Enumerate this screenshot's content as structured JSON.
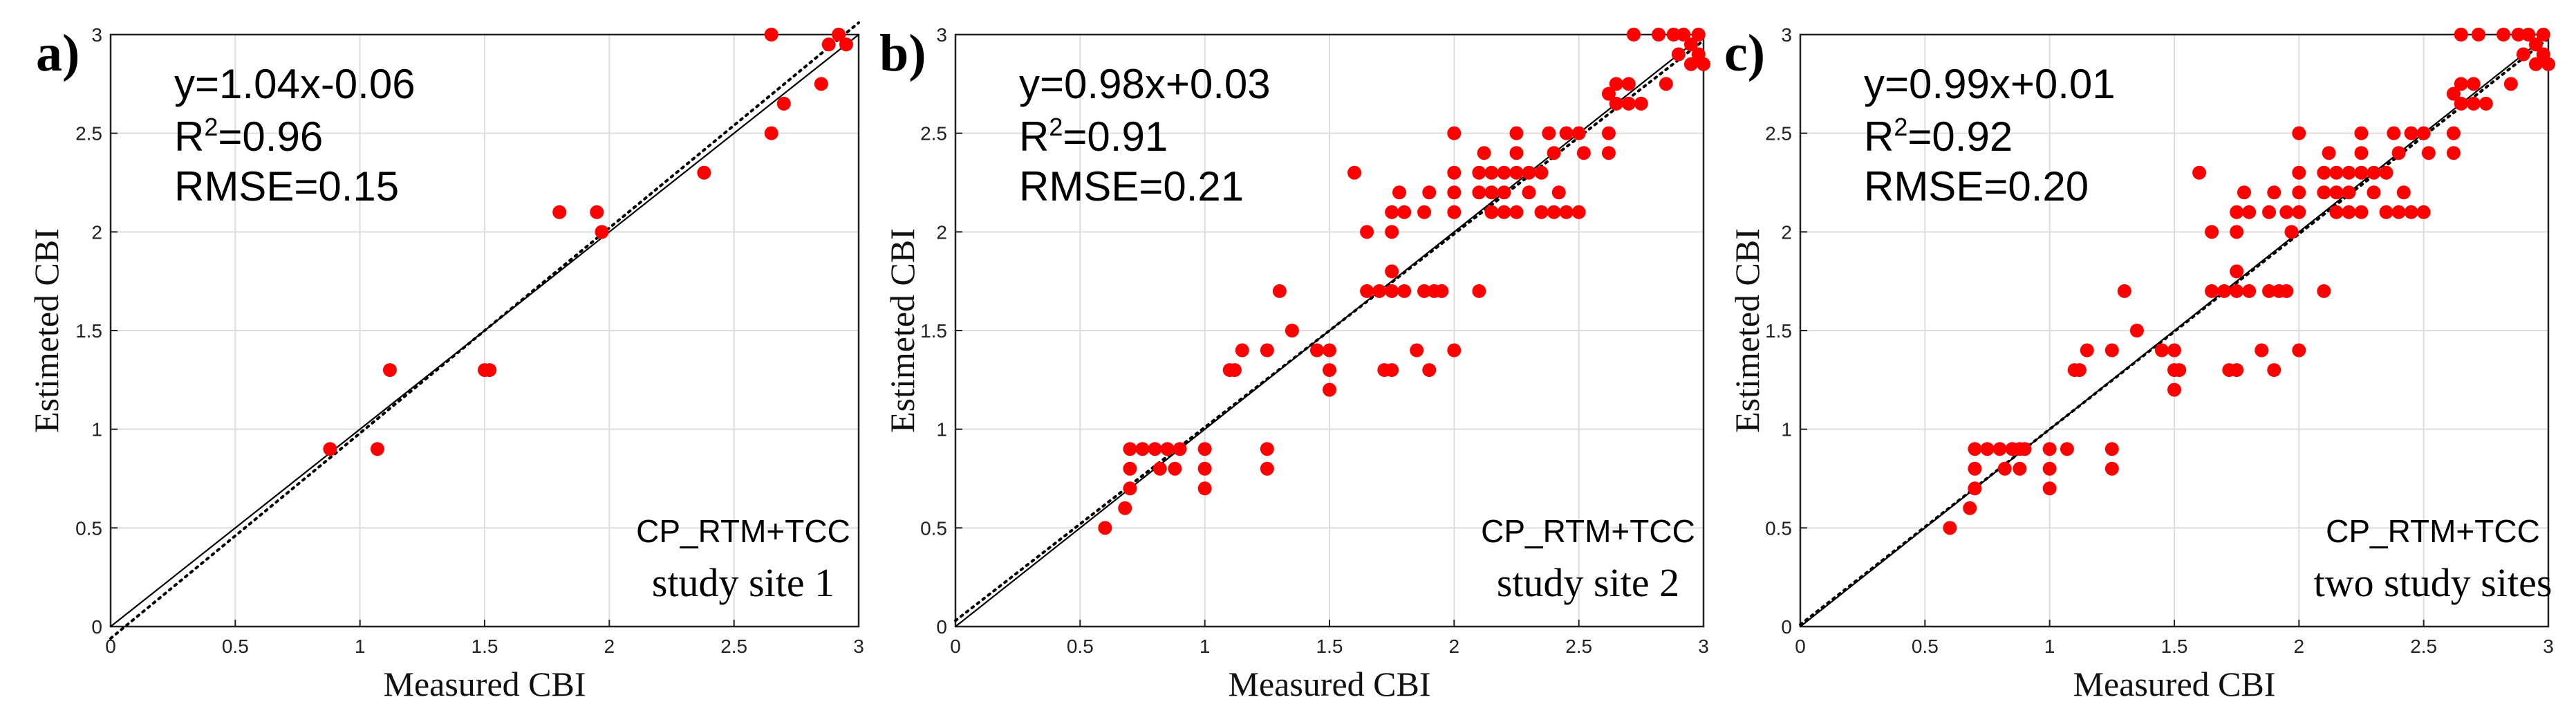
{
  "chart_data": [
    {
      "type": "scatter",
      "panel_label": "a)",
      "xlabel": "Measured CBI",
      "ylabel": "Estimeted CBI",
      "xlim": [
        0,
        3
      ],
      "ylim": [
        0,
        3
      ],
      "xticks": [
        "0",
        "0.5",
        "1",
        "1.5",
        "2",
        "2.5",
        "3"
      ],
      "yticks": [
        "0",
        "0.5",
        "1",
        "1.5",
        "2",
        "2.5",
        "3"
      ],
      "grid": true,
      "equation": "y=1.04x-0.06",
      "r2_label": "R",
      "r2_value": "=0.96",
      "rmse": "RMSE=0.15",
      "model": "CP_RTM+TCC",
      "site": "study site 1",
      "fit_line": {
        "slope": 1.04,
        "intercept": -0.06,
        "style": "dotted"
      },
      "one_to_one_line": {
        "style": "solid"
      },
      "points": [
        [
          0.88,
          0.9
        ],
        [
          1.07,
          0.9
        ],
        [
          1.12,
          1.3
        ],
        [
          1.5,
          1.3
        ],
        [
          1.52,
          1.3
        ],
        [
          1.8,
          2.1
        ],
        [
          1.95,
          2.1
        ],
        [
          1.97,
          2.0
        ],
        [
          2.38,
          2.3
        ],
        [
          2.65,
          3.0
        ],
        [
          2.65,
          2.5
        ],
        [
          2.7,
          2.65
        ],
        [
          2.85,
          2.75
        ],
        [
          2.88,
          2.95
        ],
        [
          2.92,
          3.0
        ],
        [
          2.95,
          2.95
        ]
      ]
    },
    {
      "type": "scatter",
      "panel_label": "b)",
      "xlabel": "Measured CBI",
      "ylabel": "Estimeted CBI",
      "xlim": [
        0,
        3
      ],
      "ylim": [
        0,
        3
      ],
      "xticks": [
        "0",
        "0.5",
        "1",
        "1.5",
        "2",
        "2.5",
        "3"
      ],
      "yticks": [
        "0",
        "0.5",
        "1",
        "1.5",
        "2",
        "2.5",
        "3"
      ],
      "grid": true,
      "equation": "y=0.98x+0.03",
      "r2_label": "R",
      "r2_value": "=0.91",
      "rmse": "RMSE=0.21",
      "model": "CP_RTM+TCC",
      "site": "study site 2",
      "fit_line": {
        "slope": 0.98,
        "intercept": 0.03,
        "style": "dotted"
      },
      "one_to_one_line": {
        "style": "solid"
      },
      "points": [
        [
          0.6,
          0.5
        ],
        [
          0.68,
          0.6
        ],
        [
          0.7,
          0.7
        ],
        [
          0.7,
          0.8
        ],
        [
          0.7,
          0.9
        ],
        [
          0.75,
          0.9
        ],
        [
          0.8,
          0.9
        ],
        [
          0.82,
          0.8
        ],
        [
          0.85,
          0.9
        ],
        [
          0.88,
          0.8
        ],
        [
          0.9,
          0.9
        ],
        [
          1.0,
          0.9
        ],
        [
          1.0,
          0.8
        ],
        [
          1.0,
          0.7
        ],
        [
          1.1,
          1.3
        ],
        [
          1.12,
          1.3
        ],
        [
          1.15,
          1.4
        ],
        [
          1.25,
          1.4
        ],
        [
          1.25,
          0.9
        ],
        [
          1.25,
          0.8
        ],
        [
          1.3,
          1.7
        ],
        [
          1.35,
          1.5
        ],
        [
          1.45,
          1.4
        ],
        [
          1.5,
          1.4
        ],
        [
          1.5,
          1.3
        ],
        [
          1.5,
          1.2
        ],
        [
          1.6,
          2.3
        ],
        [
          1.65,
          1.7
        ],
        [
          1.65,
          2.0
        ],
        [
          1.7,
          1.7
        ],
        [
          1.72,
          1.3
        ],
        [
          1.75,
          1.3
        ],
        [
          1.75,
          1.7
        ],
        [
          1.75,
          1.8
        ],
        [
          1.75,
          2.0
        ],
        [
          1.75,
          2.1
        ],
        [
          1.78,
          2.2
        ],
        [
          1.8,
          1.7
        ],
        [
          1.8,
          2.1
        ],
        [
          1.85,
          1.4
        ],
        [
          1.88,
          2.1
        ],
        [
          1.88,
          1.7
        ],
        [
          1.9,
          2.2
        ],
        [
          1.9,
          1.3
        ],
        [
          1.92,
          1.7
        ],
        [
          1.95,
          1.7
        ],
        [
          2.0,
          2.5
        ],
        [
          2.0,
          2.3
        ],
        [
          2.0,
          2.2
        ],
        [
          2.0,
          2.1
        ],
        [
          2.0,
          1.4
        ],
        [
          2.1,
          2.2
        ],
        [
          2.1,
          2.3
        ],
        [
          2.1,
          1.7
        ],
        [
          2.12,
          2.4
        ],
        [
          2.15,
          2.1
        ],
        [
          2.15,
          2.2
        ],
        [
          2.15,
          2.3
        ],
        [
          2.2,
          2.1
        ],
        [
          2.2,
          2.2
        ],
        [
          2.2,
          2.3
        ],
        [
          2.25,
          2.5
        ],
        [
          2.25,
          2.4
        ],
        [
          2.25,
          2.3
        ],
        [
          2.25,
          2.1
        ],
        [
          2.3,
          2.3
        ],
        [
          2.3,
          2.2
        ],
        [
          2.35,
          2.1
        ],
        [
          2.35,
          2.3
        ],
        [
          2.38,
          2.5
        ],
        [
          2.4,
          2.4
        ],
        [
          2.4,
          2.1
        ],
        [
          2.42,
          2.2
        ],
        [
          2.45,
          2.5
        ],
        [
          2.45,
          2.1
        ],
        [
          2.5,
          2.5
        ],
        [
          2.5,
          2.1
        ],
        [
          2.52,
          2.4
        ],
        [
          2.62,
          2.4
        ],
        [
          2.62,
          2.5
        ],
        [
          2.62,
          2.7
        ],
        [
          2.65,
          2.75
        ],
        [
          2.65,
          2.65
        ],
        [
          2.7,
          2.75
        ],
        [
          2.7,
          2.65
        ],
        [
          2.72,
          3.0
        ],
        [
          2.75,
          2.65
        ],
        [
          2.82,
          3.0
        ],
        [
          2.85,
          2.75
        ],
        [
          2.88,
          3.0
        ],
        [
          2.9,
          2.9
        ],
        [
          2.92,
          3.0
        ],
        [
          2.95,
          2.95
        ],
        [
          2.95,
          2.85
        ],
        [
          2.98,
          3.0
        ],
        [
          2.98,
          2.9
        ],
        [
          3.0,
          2.85
        ]
      ]
    },
    {
      "type": "scatter",
      "panel_label": "c)",
      "xlabel": "Measured CBI",
      "ylabel": "Estimeted CBI",
      "xlim": [
        0,
        3
      ],
      "ylim": [
        0,
        3
      ],
      "xticks": [
        "0",
        "0.5",
        "1",
        "1.5",
        "2",
        "2.5",
        "3"
      ],
      "yticks": [
        "0",
        "0.5",
        "1",
        "1.5",
        "2",
        "2.5",
        "3"
      ],
      "grid": true,
      "equation": "y=0.99x+0.01",
      "r2_label": "R",
      "r2_value": "=0.92",
      "rmse": "RMSE=0.20",
      "model": "CP_RTM+TCC",
      "site": "two study sites",
      "fit_line": {
        "slope": 0.99,
        "intercept": 0.01,
        "style": "dotted"
      },
      "one_to_one_line": {
        "style": "solid"
      },
      "points": [
        [
          0.6,
          0.5
        ],
        [
          0.68,
          0.6
        ],
        [
          0.7,
          0.7
        ],
        [
          0.7,
          0.8
        ],
        [
          0.7,
          0.9
        ],
        [
          0.75,
          0.9
        ],
        [
          0.8,
          0.9
        ],
        [
          0.82,
          0.8
        ],
        [
          0.85,
          0.9
        ],
        [
          0.88,
          0.8
        ],
        [
          0.88,
          0.9
        ],
        [
          0.9,
          0.9
        ],
        [
          1.0,
          0.9
        ],
        [
          1.0,
          0.8
        ],
        [
          1.0,
          0.7
        ],
        [
          1.07,
          0.9
        ],
        [
          1.1,
          1.3
        ],
        [
          1.12,
          1.3
        ],
        [
          1.15,
          1.4
        ],
        [
          1.25,
          1.4
        ],
        [
          1.25,
          0.9
        ],
        [
          1.25,
          0.8
        ],
        [
          1.3,
          1.7
        ],
        [
          1.35,
          1.5
        ],
        [
          1.45,
          1.4
        ],
        [
          1.5,
          1.4
        ],
        [
          1.5,
          1.3
        ],
        [
          1.52,
          1.3
        ],
        [
          1.5,
          1.2
        ],
        [
          1.6,
          2.3
        ],
        [
          1.65,
          1.7
        ],
        [
          1.65,
          2.0
        ],
        [
          1.7,
          1.7
        ],
        [
          1.72,
          1.3
        ],
        [
          1.75,
          1.3
        ],
        [
          1.75,
          1.7
        ],
        [
          1.75,
          1.8
        ],
        [
          1.75,
          2.0
        ],
        [
          1.75,
          2.1
        ],
        [
          1.78,
          2.2
        ],
        [
          1.8,
          1.7
        ],
        [
          1.8,
          2.1
        ],
        [
          1.85,
          1.4
        ],
        [
          1.88,
          2.1
        ],
        [
          1.88,
          1.7
        ],
        [
          1.9,
          2.2
        ],
        [
          1.9,
          1.3
        ],
        [
          1.92,
          1.7
        ],
        [
          1.95,
          1.7
        ],
        [
          1.95,
          2.1
        ],
        [
          1.97,
          2.0
        ],
        [
          2.0,
          2.5
        ],
        [
          2.0,
          2.3
        ],
        [
          2.0,
          2.2
        ],
        [
          2.0,
          2.1
        ],
        [
          2.0,
          1.4
        ],
        [
          2.1,
          2.2
        ],
        [
          2.1,
          2.3
        ],
        [
          2.1,
          1.7
        ],
        [
          2.12,
          2.4
        ],
        [
          2.15,
          2.1
        ],
        [
          2.15,
          2.2
        ],
        [
          2.15,
          2.3
        ],
        [
          2.2,
          2.1
        ],
        [
          2.2,
          2.2
        ],
        [
          2.2,
          2.3
        ],
        [
          2.25,
          2.5
        ],
        [
          2.25,
          2.4
        ],
        [
          2.25,
          2.3
        ],
        [
          2.25,
          2.1
        ],
        [
          2.3,
          2.3
        ],
        [
          2.3,
          2.2
        ],
        [
          2.35,
          2.1
        ],
        [
          2.35,
          2.3
        ],
        [
          2.38,
          2.5
        ],
        [
          2.4,
          2.4
        ],
        [
          2.4,
          2.1
        ],
        [
          2.42,
          2.2
        ],
        [
          2.45,
          2.5
        ],
        [
          2.45,
          2.1
        ],
        [
          2.5,
          2.5
        ],
        [
          2.5,
          2.1
        ],
        [
          2.52,
          2.4
        ],
        [
          2.62,
          2.4
        ],
        [
          2.62,
          2.5
        ],
        [
          2.62,
          2.7
        ],
        [
          2.65,
          2.75
        ],
        [
          2.65,
          2.65
        ],
        [
          2.65,
          3.0
        ],
        [
          2.7,
          2.75
        ],
        [
          2.7,
          2.65
        ],
        [
          2.72,
          3.0
        ],
        [
          2.75,
          2.65
        ],
        [
          2.82,
          3.0
        ],
        [
          2.85,
          2.75
        ],
        [
          2.88,
          3.0
        ],
        [
          2.9,
          2.9
        ],
        [
          2.92,
          3.0
        ],
        [
          2.95,
          2.95
        ],
        [
          2.95,
          2.85
        ],
        [
          2.98,
          3.0
        ],
        [
          2.98,
          2.9
        ],
        [
          3.0,
          2.85
        ]
      ]
    }
  ],
  "colors": {
    "points": "#ff0000",
    "lines": "#000000",
    "grid": "#dcdcdc"
  }
}
